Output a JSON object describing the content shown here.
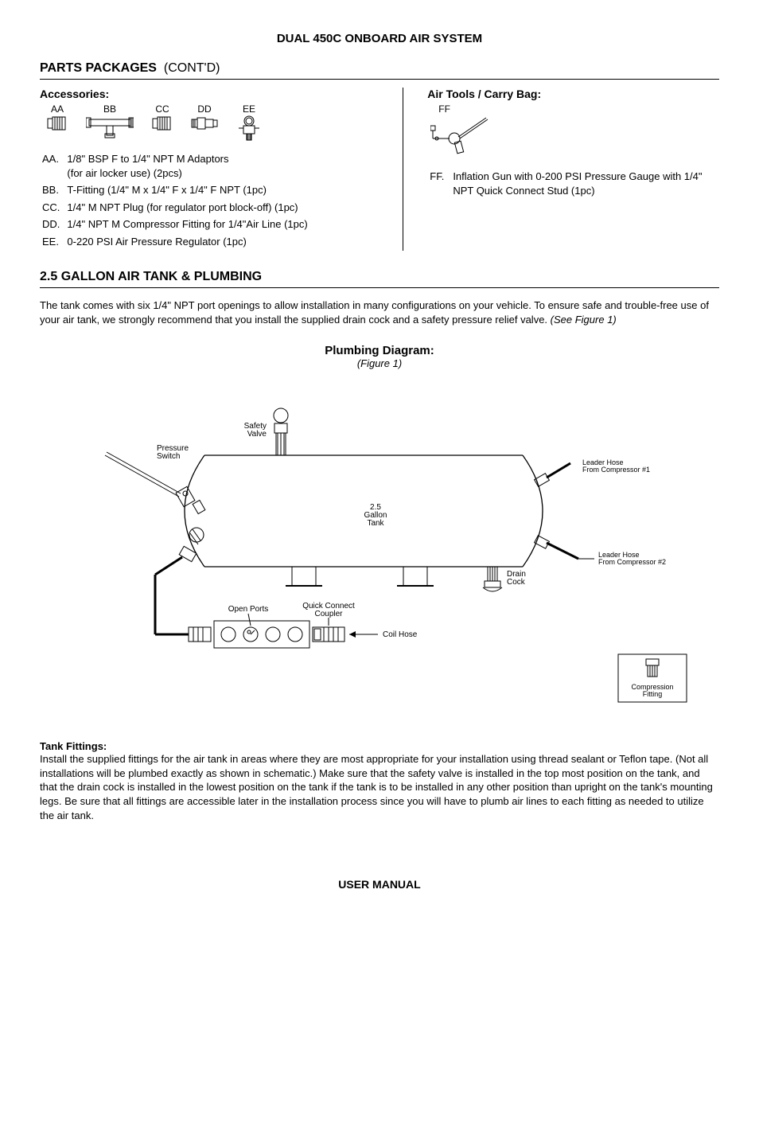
{
  "doc": {
    "title": "DUAL 450C ONBOARD AIR SYSTEM",
    "footer": "USER MANUAL"
  },
  "parts_packages": {
    "heading": "PARTS PACKAGES",
    "cont": "(CONT'D)"
  },
  "accessories": {
    "heading": "Accessories:",
    "labels": {
      "aa": "AA",
      "bb": "BB",
      "cc": "CC",
      "dd": "DD",
      "ee": "EE"
    },
    "items": {
      "aa_k": "AA.",
      "aa_v": "1/8\" BSP F to 1/4\" NPT M Adaptors\n(for air locker use) (2pcs)",
      "bb_k": "BB.",
      "bb_v": "T-Fitting (1/4\" M x 1/4\" F x 1/4\" F NPT (1pc)",
      "cc_k": "CC.",
      "cc_v": "1/4\" M NPT Plug (for regulator port block-off)  (1pc)",
      "dd_k": "DD.",
      "dd_v": "1/4\" NPT M Compressor Fitting for 1/4\"Air Line (1pc)",
      "ee_k": "EE.",
      "ee_v": "0-220 PSI Air Pressure Regulator (1pc)"
    }
  },
  "airtools": {
    "heading": "Air Tools / Carry Bag:",
    "labels": {
      "ff": "FF"
    },
    "items": {
      "ff_k": "FF.",
      "ff_v": "Inflation Gun with 0-200 PSI Pressure Gauge with 1/4\" NPT Quick Connect Stud (1pc)"
    }
  },
  "tank_section": {
    "heading": "2.5 GALLON AIR TANK & PLUMBING",
    "para": "The tank comes with six 1/4\" NPT port openings to allow installation in many configurations on your vehicle. To ensure safe and trouble-free use of your air tank, we strongly recommend that you install the supplied drain cock and a safety pressure relief valve.  (See Figure 1)"
  },
  "diagram": {
    "title": "Plumbing Diagram:",
    "subtitle": "(Figure 1)",
    "labels": {
      "safety_valve": "Safety\nValve",
      "pressure_switch": "Pressure\nSwitch",
      "tank": "2.5\nGallon\nTank",
      "leader1": "Leader Hose\nFrom Compressor #1",
      "leader2": "Leader Hose\nFrom Compressor #2",
      "drain_cock": "Drain\nCock",
      "open_ports": "Open Ports",
      "quick_connect": "Quick Connect\nCoupler",
      "coil_hose": "Coil Hose",
      "compression_fitting": "Compression\nFitting"
    }
  },
  "tank_fittings": {
    "heading": "Tank Fittings:",
    "para": "Install the supplied fittings for the air tank in areas where they are most appropriate for your installation using thread sealant or Teflon tape. (Not all installations will be plumbed exactly as shown in schematic.) Make sure that the safety valve is installed in the top most position on the tank, and that the drain cock is installed in the lowest position on the tank if the tank is to be installed in any other position than upright on the tank's mounting legs. Be sure that all fittings are accessible later in the installation process since you will have to plumb air lines to each fitting as needed to utilize the air tank."
  }
}
